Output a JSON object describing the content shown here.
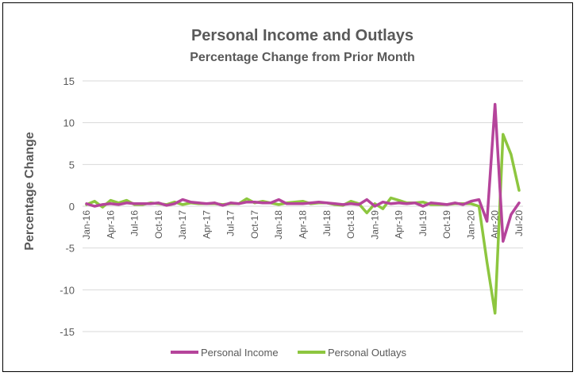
{
  "chart_data": {
    "type": "line",
    "title": "Personal Income and Outlays",
    "subtitle": "Percentage Change from Prior Month",
    "ylabel": "Percentage Change",
    "xlabel": "",
    "ylim": [
      -15,
      15
    ],
    "yticks": [
      15,
      10,
      5,
      0,
      -5,
      -10,
      -15
    ],
    "grid": true,
    "legend_position": "bottom",
    "x_tick_labels": [
      "Jan-16",
      "Apr-16",
      "Jul-16",
      "Oct-16",
      "Jan-17",
      "Apr-17",
      "Jul-17",
      "Oct-17",
      "Jan-18",
      "Apr-18",
      "Jul-18",
      "Oct-18",
      "Jan-19",
      "Apr-19",
      "Jul-19",
      "Oct-19",
      "Jan-20",
      "Apr-20",
      "Jul-20"
    ],
    "x": [
      "Jan-16",
      "Feb-16",
      "Mar-16",
      "Apr-16",
      "May-16",
      "Jun-16",
      "Jul-16",
      "Aug-16",
      "Sep-16",
      "Oct-16",
      "Nov-16",
      "Dec-16",
      "Jan-17",
      "Feb-17",
      "Mar-17",
      "Apr-17",
      "May-17",
      "Jun-17",
      "Jul-17",
      "Aug-17",
      "Sep-17",
      "Oct-17",
      "Nov-17",
      "Dec-17",
      "Jan-18",
      "Feb-18",
      "Mar-18",
      "Apr-18",
      "May-18",
      "Jun-18",
      "Jul-18",
      "Aug-18",
      "Sep-18",
      "Oct-18",
      "Nov-18",
      "Dec-18",
      "Jan-19",
      "Feb-19",
      "Mar-19",
      "Apr-19",
      "May-19",
      "Jun-19",
      "Jul-19",
      "Aug-19",
      "Sep-19",
      "Oct-19",
      "Nov-19",
      "Dec-19",
      "Jan-20",
      "Feb-20",
      "Mar-20",
      "Apr-20",
      "May-20",
      "Jun-20",
      "Jul-20"
    ],
    "series": [
      {
        "name": "Personal Income",
        "color": "#b5449b",
        "values": [
          0.3,
          0.0,
          0.2,
          0.3,
          0.2,
          0.4,
          0.3,
          0.3,
          0.3,
          0.4,
          0.1,
          0.3,
          0.8,
          0.5,
          0.4,
          0.3,
          0.4,
          0.1,
          0.4,
          0.3,
          0.5,
          0.5,
          0.4,
          0.4,
          0.8,
          0.3,
          0.3,
          0.3,
          0.4,
          0.5,
          0.4,
          0.3,
          0.2,
          0.3,
          0.2,
          0.8,
          0.0,
          0.5,
          0.3,
          0.4,
          0.3,
          0.4,
          0.0,
          0.4,
          0.3,
          0.2,
          0.4,
          0.2,
          0.6,
          0.8,
          -1.8,
          12.2,
          -4.2,
          -1.0,
          0.4
        ]
      },
      {
        "name": "Personal Outlays",
        "color": "#8dc63f",
        "values": [
          0.2,
          0.6,
          -0.1,
          0.7,
          0.4,
          0.7,
          0.2,
          0.2,
          0.4,
          0.3,
          0.2,
          0.5,
          0.2,
          0.4,
          0.3,
          0.3,
          0.3,
          0.2,
          0.3,
          0.3,
          0.9,
          0.4,
          0.6,
          0.4,
          0.2,
          0.4,
          0.5,
          0.6,
          0.3,
          0.4,
          0.4,
          0.2,
          0.1,
          0.6,
          0.3,
          -0.8,
          0.3,
          -0.3,
          1.0,
          0.7,
          0.4,
          0.4,
          0.5,
          0.2,
          0.2,
          0.2,
          0.3,
          0.3,
          0.3,
          0.0,
          -6.7,
          -12.8,
          8.6,
          6.2,
          1.9
        ]
      }
    ]
  }
}
